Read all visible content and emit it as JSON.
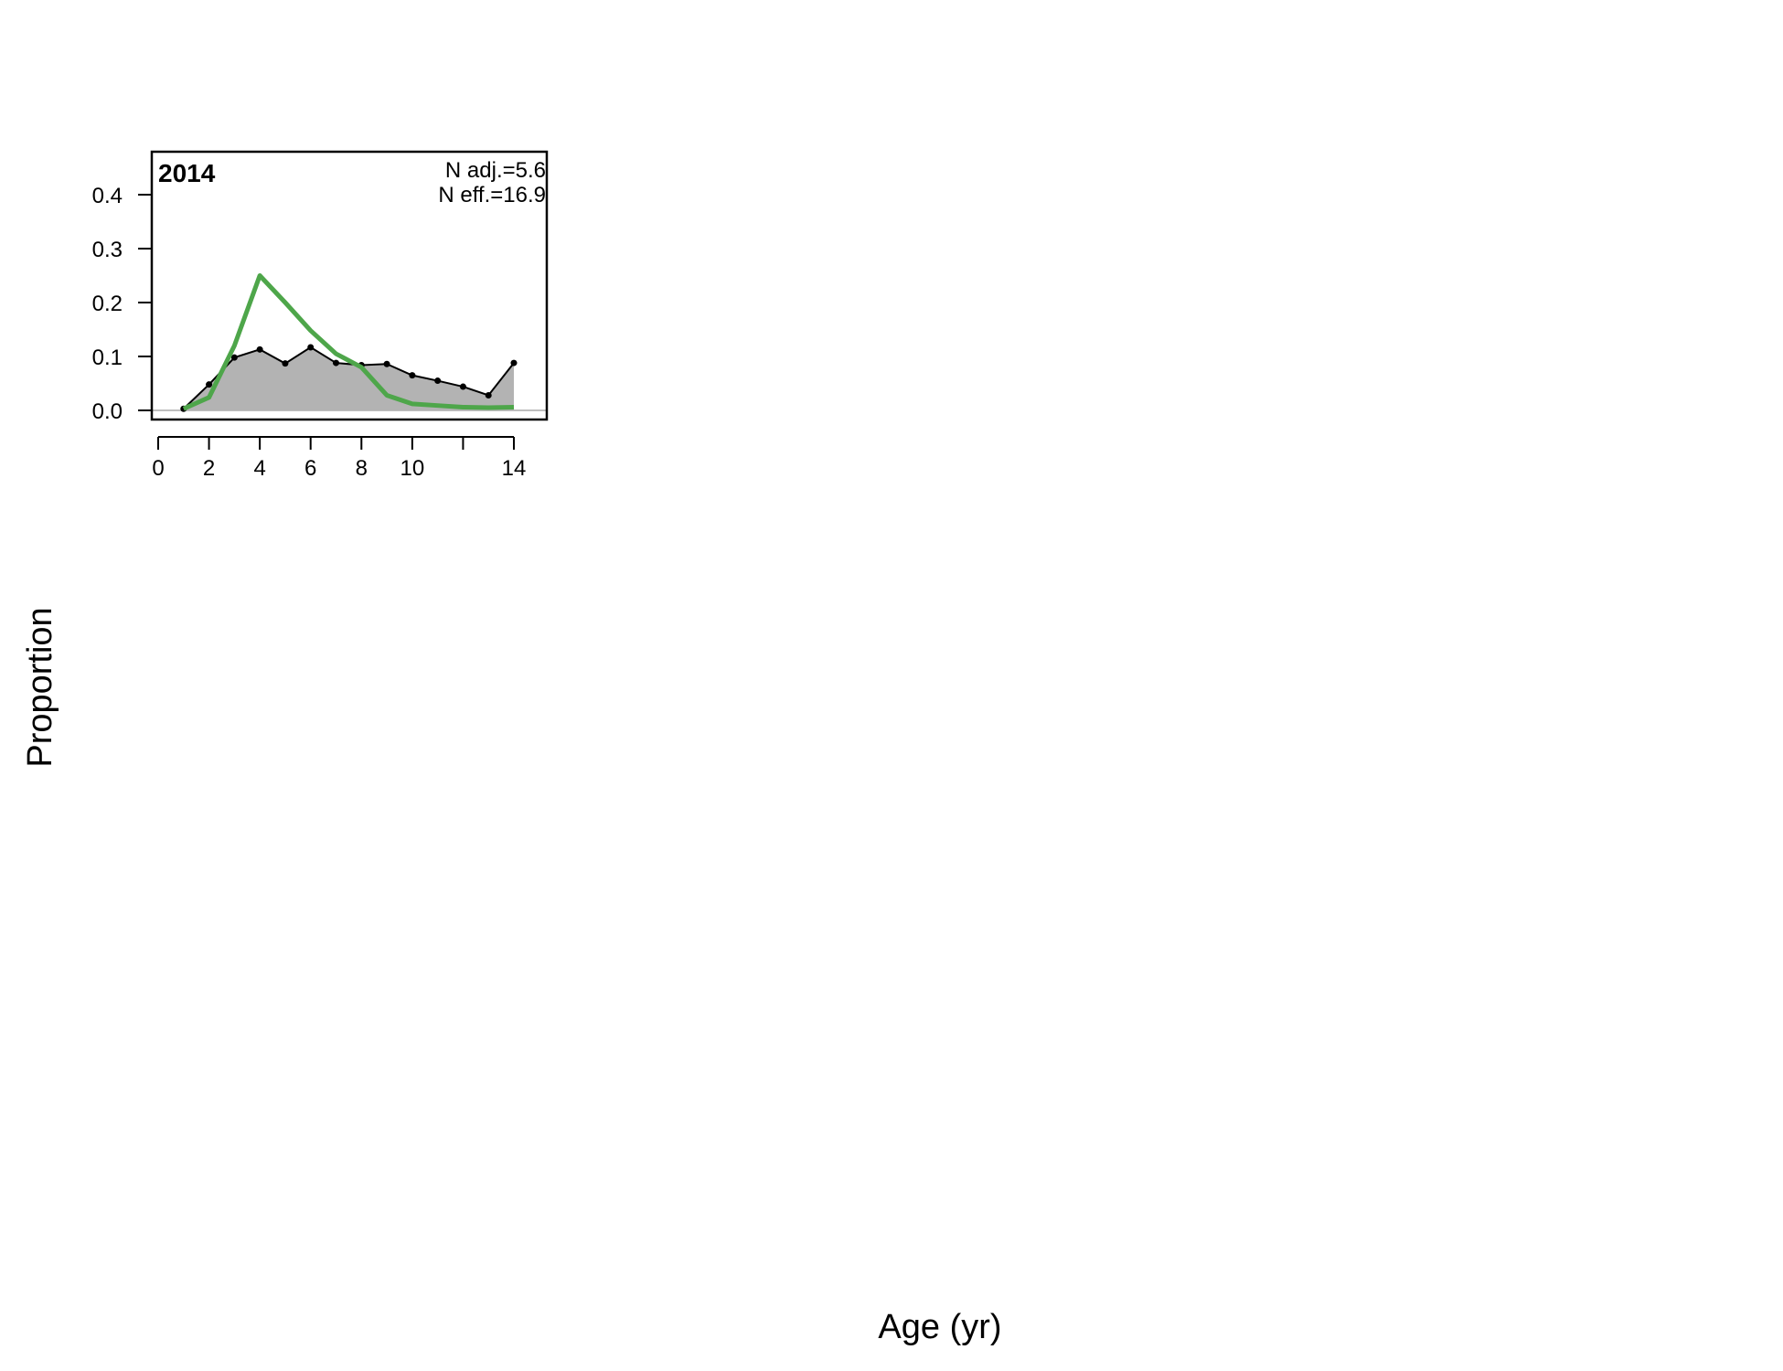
{
  "chart_data": {
    "type": "area",
    "panel_label": "2014",
    "annotations": [
      "N adj.=5.6",
      "N eff.=16.9"
    ],
    "xlabel": "Age (yr)",
    "ylabel": "Proportion",
    "xlim": [
      0,
      15
    ],
    "ylim": [
      0,
      0.45
    ],
    "x_ticks": [
      0,
      2,
      4,
      6,
      8,
      10,
      14
    ],
    "y_ticks": [
      "0.0",
      "0.1",
      "0.2",
      "0.3",
      "0.4"
    ],
    "grid": false,
    "series": [
      {
        "kind": "observed",
        "x": [
          1,
          2,
          3,
          4,
          5,
          6,
          7,
          8,
          9,
          10,
          11,
          12,
          13,
          14
        ],
        "values": [
          0.003,
          0.048,
          0.098,
          0.113,
          0.087,
          0.117,
          0.088,
          0.084,
          0.086,
          0.065,
          0.055,
          0.044,
          0.028,
          0.088
        ],
        "fill": "#b3b3b3",
        "line": "#000000"
      },
      {
        "kind": "expected",
        "x": [
          1,
          2,
          3,
          4,
          5,
          6,
          7,
          8,
          9,
          10,
          11,
          12,
          13,
          14
        ],
        "values": [
          0.003,
          0.024,
          0.12,
          0.25,
          0.2,
          0.148,
          0.105,
          0.08,
          0.028,
          0.012,
          0.009,
          0.006,
          0.005,
          0.006
        ],
        "line": "#4ea64a"
      }
    ],
    "colors": {
      "observed_fill": "#b3b3b3",
      "expected_line": "#4ea64a",
      "zero_line": "#bfbfbf"
    }
  }
}
